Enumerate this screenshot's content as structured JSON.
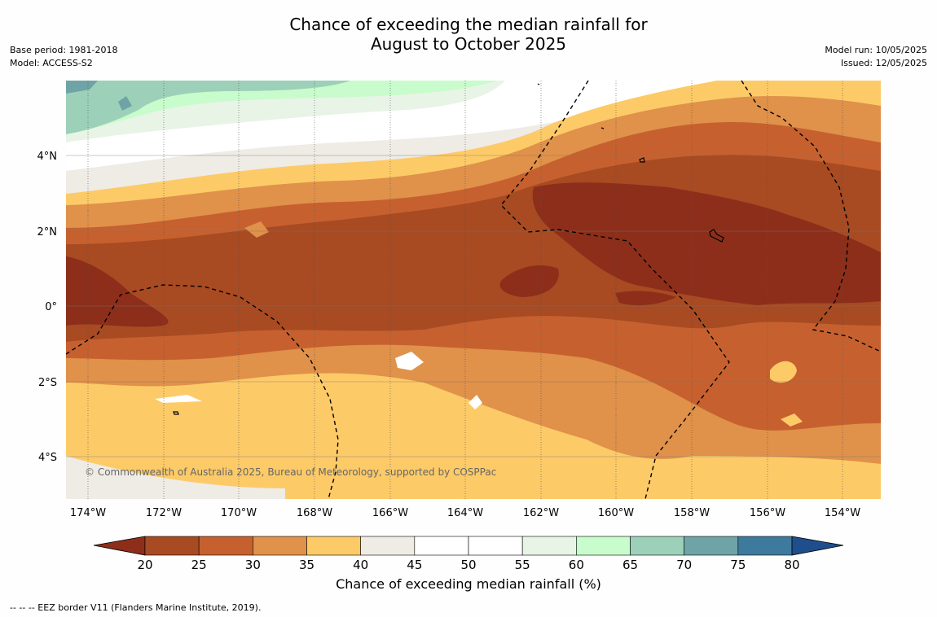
{
  "title_line1": "Chance of exceeding the median rainfall for",
  "title_line2": "August to October 2025",
  "base_period": "Base period: 1981-2018",
  "model": "Model: ACCESS-S2",
  "model_run": "Model run: 10/05/2025",
  "issued": "Issued: 12/05/2025",
  "copyright": "© Commonwealth of Australia 2025, Bureau of Meteorology, supported by COSPPac",
  "lat_labels": [
    "4°N",
    "2°N",
    "0°",
    "2°S",
    "4°S"
  ],
  "lon_labels": [
    "174°W",
    "172°W",
    "170°W",
    "168°W",
    "166°W",
    "164°W",
    "162°W",
    "160°W",
    "158°W",
    "156°W",
    "154°W"
  ],
  "colorbar": {
    "ticks": [
      "20",
      "25",
      "30",
      "35",
      "40",
      "45",
      "50",
      "55",
      "60",
      "65",
      "70",
      "75",
      "80"
    ],
    "colors": [
      "#a84a22",
      "#c6612f",
      "#e0914a",
      "#fdca68",
      "#efebe5",
      "#ffffff",
      "#ffffff",
      "#e8f4e6",
      "#c8fccc",
      "#9dd0b8",
      "#6fa4a6",
      "#3e7a9e"
    ],
    "under_color": "#8c2e1a",
    "over_color": "#1e4e8c",
    "label": "Chance of exceeding median rainfall (%)"
  },
  "footer": "-- -- -- EEZ border V11 (Flanders Marine Institute, 2019)."
}
